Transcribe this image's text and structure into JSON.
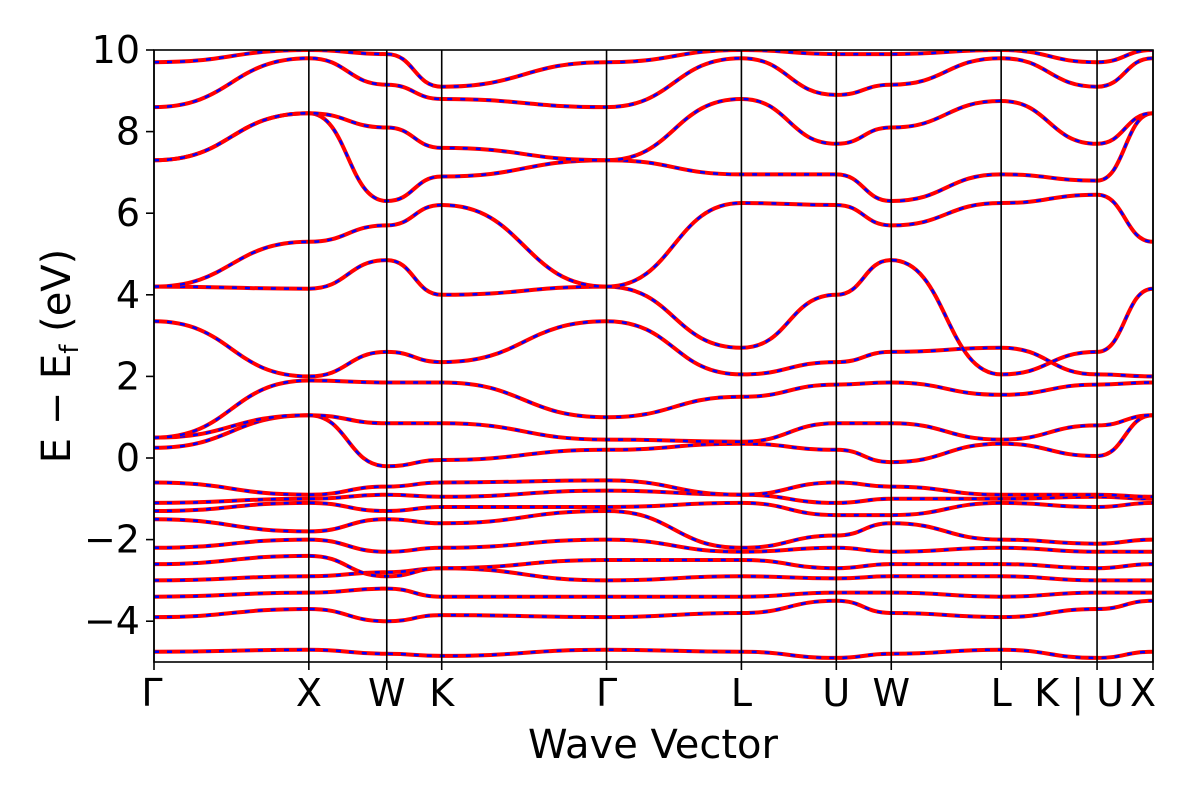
{
  "chart_data": {
    "type": "line",
    "xlabel": "Wave Vector",
    "ylabel_parts": {
      "main": "E − E",
      "sub": "f",
      "unit": " (eV)"
    },
    "ylim": [
      -5,
      10
    ],
    "yticks": [
      "−4",
      "−2",
      "0",
      "2",
      "4",
      "6",
      "8",
      "10"
    ],
    "ytick_values": [
      -4,
      -2,
      0,
      2,
      4,
      6,
      8,
      10
    ],
    "xrange": [
      0,
      1
    ],
    "kpoints": [
      {
        "label": "Γ",
        "x": 0.0
      },
      {
        "label": "X",
        "x": 0.155
      },
      {
        "label": "W",
        "x": 0.233
      },
      {
        "label": "K",
        "x": 0.288
      },
      {
        "label": "Γ",
        "x": 0.453
      },
      {
        "label": "L",
        "x": 0.588
      },
      {
        "label": "U",
        "x": 0.683
      },
      {
        "label": "W",
        "x": 0.738
      },
      {
        "label": "L",
        "x": 0.848
      },
      {
        "label": "K | U",
        "x": 0.944
      },
      {
        "label": "X",
        "x": 1.0
      }
    ],
    "series_colors": {
      "solid": "#ff0000",
      "dashed": "#0000ff"
    },
    "grid": false,
    "bands": [
      {
        "y": [
          -4.75,
          -4.7,
          -4.8,
          -4.85,
          -4.7,
          -4.75,
          -4.9,
          -4.8,
          -4.7,
          -4.9,
          -4.75
        ]
      },
      {
        "y": [
          -3.9,
          -3.7,
          -4.0,
          -3.85,
          -3.9,
          -3.8,
          -3.5,
          -3.8,
          -3.9,
          -3.7,
          -3.5
        ]
      },
      {
        "y": [
          -3.4,
          -3.3,
          -3.2,
          -3.4,
          -3.4,
          -3.4,
          -3.3,
          -3.3,
          -3.4,
          -3.3,
          -3.3
        ]
      },
      {
        "y": [
          -3.0,
          -2.9,
          -2.8,
          -2.7,
          -3.0,
          -2.9,
          -2.95,
          -2.9,
          -2.9,
          -3.0,
          -3.0
        ]
      },
      {
        "y": [
          -2.6,
          -2.4,
          -2.9,
          -2.7,
          -2.5,
          -2.5,
          -2.7,
          -2.6,
          -2.6,
          -2.7,
          -2.6
        ]
      },
      {
        "y": [
          -2.2,
          -2.0,
          -2.3,
          -2.2,
          -2.0,
          -2.3,
          -2.2,
          -2.3,
          -2.2,
          -2.3,
          -2.3
        ]
      },
      {
        "y": [
          -1.5,
          -1.8,
          -1.5,
          -1.6,
          -1.3,
          -2.2,
          -1.9,
          -1.6,
          -2.0,
          -2.1,
          -2.0
        ]
      },
      {
        "y": [
          -1.3,
          -1.1,
          -1.3,
          -1.2,
          -1.2,
          -1.1,
          -1.4,
          -1.4,
          -1.1,
          -1.2,
          -1.1
        ]
      },
      {
        "y": [
          -1.1,
          -1.0,
          -0.9,
          -0.95,
          -0.8,
          -0.9,
          -1.1,
          -1.0,
          -1.0,
          -0.95,
          -1.0
        ]
      },
      {
        "y": [
          -0.6,
          -0.9,
          -0.7,
          -0.6,
          -0.55,
          -0.9,
          -0.6,
          -0.7,
          -0.9,
          -0.9,
          -0.95
        ]
      },
      {
        "y": [
          0.25,
          1.05,
          -0.2,
          -0.05,
          0.2,
          0.35,
          0.2,
          -0.1,
          0.35,
          0.05,
          1.05
        ]
      },
      {
        "y": [
          0.5,
          1.05,
          0.85,
          0.85,
          0.45,
          0.4,
          0.85,
          0.85,
          0.45,
          0.8,
          1.05
        ]
      },
      {
        "y": [
          0.5,
          1.9,
          1.85,
          1.85,
          1.0,
          1.5,
          1.8,
          1.85,
          1.55,
          1.8,
          1.85
        ]
      },
      {
        "y": [
          3.35,
          2.0,
          2.6,
          2.35,
          3.35,
          2.05,
          2.35,
          2.6,
          2.7,
          2.05,
          2.0
        ]
      },
      {
        "y": [
          4.2,
          4.15,
          4.85,
          4.0,
          4.2,
          2.7,
          4.0,
          4.85,
          2.05,
          2.6,
          4.15
        ]
      },
      {
        "y": [
          4.2,
          5.3,
          5.7,
          6.2,
          4.2,
          6.25,
          6.2,
          5.7,
          6.25,
          6.45,
          5.3
        ]
      },
      {
        "y": [
          7.3,
          8.45,
          6.3,
          6.9,
          7.3,
          6.95,
          6.95,
          6.3,
          6.95,
          6.8,
          8.45
        ]
      },
      {
        "y": [
          7.3,
          8.45,
          8.1,
          7.6,
          7.3,
          8.8,
          7.7,
          8.1,
          8.75,
          7.7,
          8.45
        ]
      },
      {
        "y": [
          8.6,
          9.8,
          9.15,
          8.8,
          8.6,
          9.8,
          8.9,
          9.15,
          9.8,
          9.1,
          9.8
        ]
      },
      {
        "y": [
          9.7,
          10.0,
          9.9,
          9.1,
          9.7,
          10.0,
          9.9,
          9.9,
          10.0,
          9.7,
          10.0
        ]
      }
    ]
  }
}
